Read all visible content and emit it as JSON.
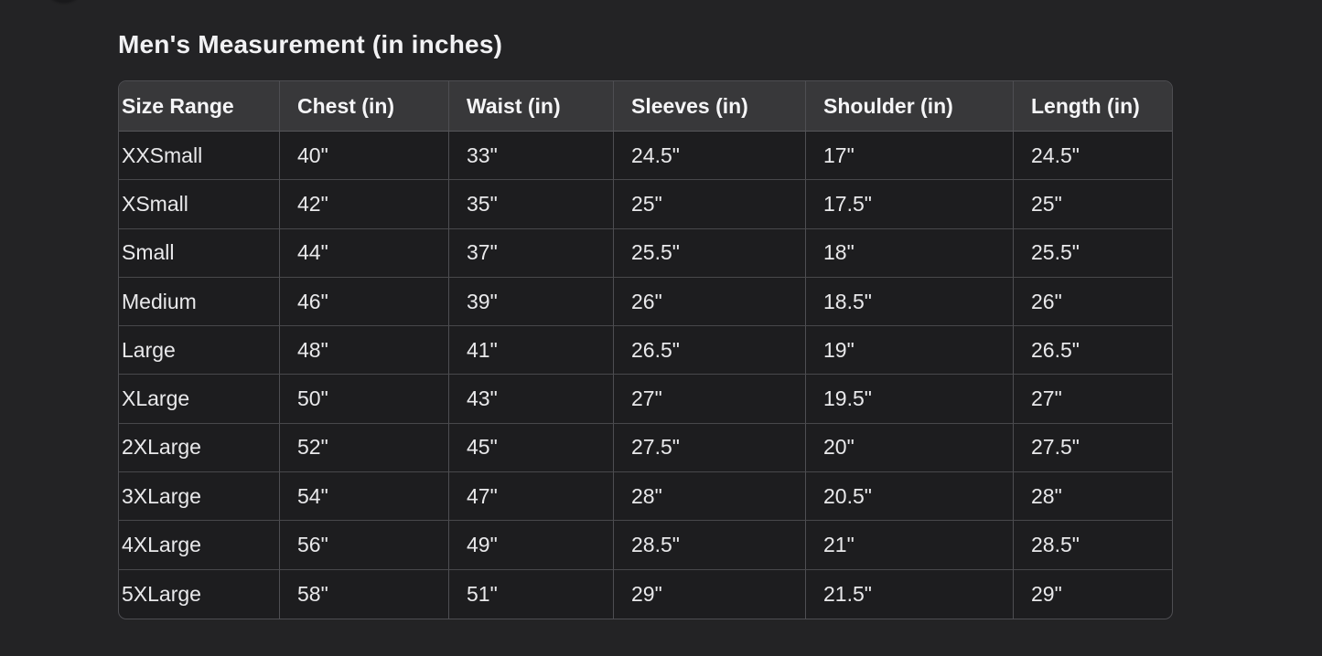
{
  "page": {
    "title": "Men's Measurement (in inches)"
  },
  "size_chart": {
    "columns": [
      "Size Range",
      "Chest (in)",
      "Waist (in)",
      "Sleeves (in)",
      "Shoulder (in)",
      "Length (in)"
    ],
    "rows": [
      [
        "XXSmall",
        "40\"",
        "33\"",
        "24.5\"",
        "17\"",
        "24.5\""
      ],
      [
        "XSmall",
        "42\"",
        "35\"",
        "25\"",
        "17.5\"",
        "25\""
      ],
      [
        "Small",
        "44\"",
        "37\"",
        "25.5\"",
        "18\"",
        "25.5\""
      ],
      [
        "Medium",
        "46\"",
        "39\"",
        "26\"",
        "18.5\"",
        "26\""
      ],
      [
        "Large",
        "48\"",
        "41\"",
        "26.5\"",
        "19\"",
        "26.5\""
      ],
      [
        "XLarge",
        "50\"",
        "43\"",
        "27\"",
        "19.5\"",
        "27\""
      ],
      [
        "2XLarge",
        "52\"",
        "45\"",
        "27.5\"",
        "20\"",
        "27.5\""
      ],
      [
        "3XLarge",
        "54\"",
        "47\"",
        "28\"",
        "20.5\"",
        "28\""
      ],
      [
        "4XLarge",
        "56\"",
        "49\"",
        "28.5\"",
        "21\"",
        "28.5\""
      ],
      [
        "5XLarge",
        "58\"",
        "51\"",
        "29\"",
        "21.5\"",
        "29\""
      ]
    ]
  },
  "colors": {
    "page_bg": "#232325",
    "table_bg": "#1d1d1f",
    "header_bg": "#38383a",
    "border_color": "#4e4e52",
    "row_border_color": "#48484b",
    "title_color": "#f2f2f4",
    "header_text": "#f5f5f7",
    "cell_text": "#e9e9eb",
    "avatar_bg": "#19191b"
  }
}
